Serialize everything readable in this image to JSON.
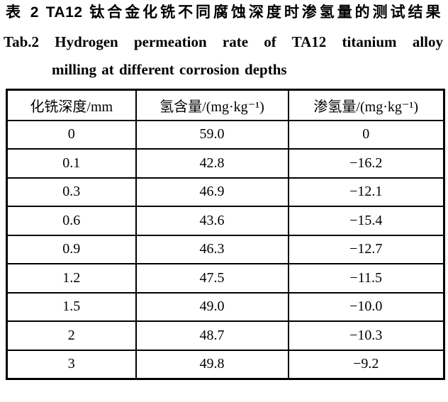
{
  "caption": {
    "zh": "表 2  TA12 钛合金化铣不同腐蚀深度时渗氢量的测试结果",
    "en_line1": "Tab.2  Hydrogen permeation rate of TA12 titanium alloy",
    "en_line2": "milling at different corrosion depths"
  },
  "table": {
    "headers": [
      "化铣深度/mm",
      "氢含量/(mg·kg⁻¹)",
      "渗氢量/(mg·kg⁻¹)"
    ],
    "rows": [
      [
        "0",
        "59.0",
        "0"
      ],
      [
        "0.1",
        "42.8",
        "−16.2"
      ],
      [
        "0.3",
        "46.9",
        "−12.1"
      ],
      [
        "0.6",
        "43.6",
        "−15.4"
      ],
      [
        "0.9",
        "46.3",
        "−12.7"
      ],
      [
        "1.2",
        "47.5",
        "−11.5"
      ],
      [
        "1.5",
        "49.0",
        "−10.0"
      ],
      [
        "2",
        "48.7",
        "−10.3"
      ],
      [
        "3",
        "49.8",
        "−9.2"
      ]
    ]
  },
  "colors": {
    "text": "#000000",
    "background": "#ffffff",
    "table_border": "#000000"
  }
}
